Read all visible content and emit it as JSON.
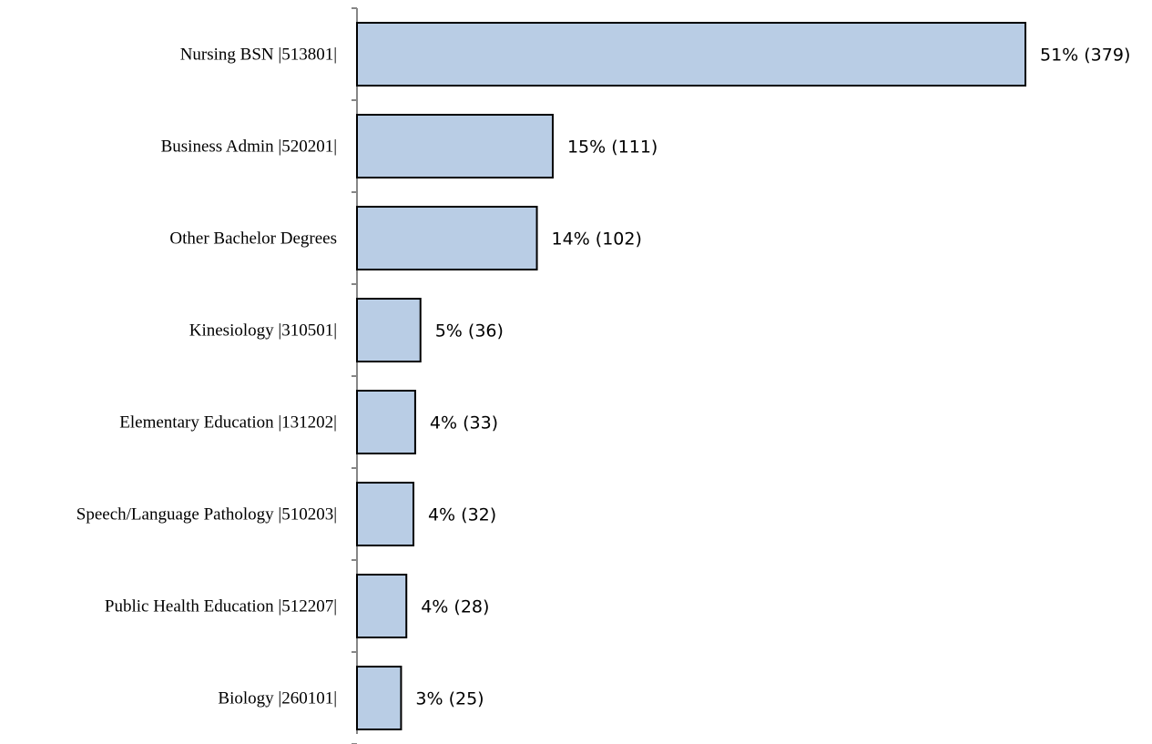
{
  "chart_data": {
    "type": "bar",
    "orientation": "horizontal",
    "categories": [
      "Nursing BSN |513801|",
      "Business Admin |520201|",
      "Other Bachelor Degrees",
      "Kinesiology |310501|",
      "Elementary Education |131202|",
      "Speech/Language Pathology |510203|",
      "Public Health Education |512207|",
      "Biology |260101|"
    ],
    "values": [
      379,
      111,
      102,
      36,
      33,
      32,
      28,
      25
    ],
    "data_labels": [
      "51% (379)",
      "15% (111)",
      "14% (102)",
      "5% (36)",
      "4% (33)",
      "4% (32)",
      "4% (28)",
      "3% (25)"
    ],
    "title": "",
    "xlabel": "",
    "ylabel": "",
    "xlim": [
      0,
      379
    ],
    "grid": false,
    "legend": "none",
    "colors": {
      "bar_fill": "#b9cde5",
      "bar_stroke": "#000000",
      "axis": "#868686"
    }
  }
}
